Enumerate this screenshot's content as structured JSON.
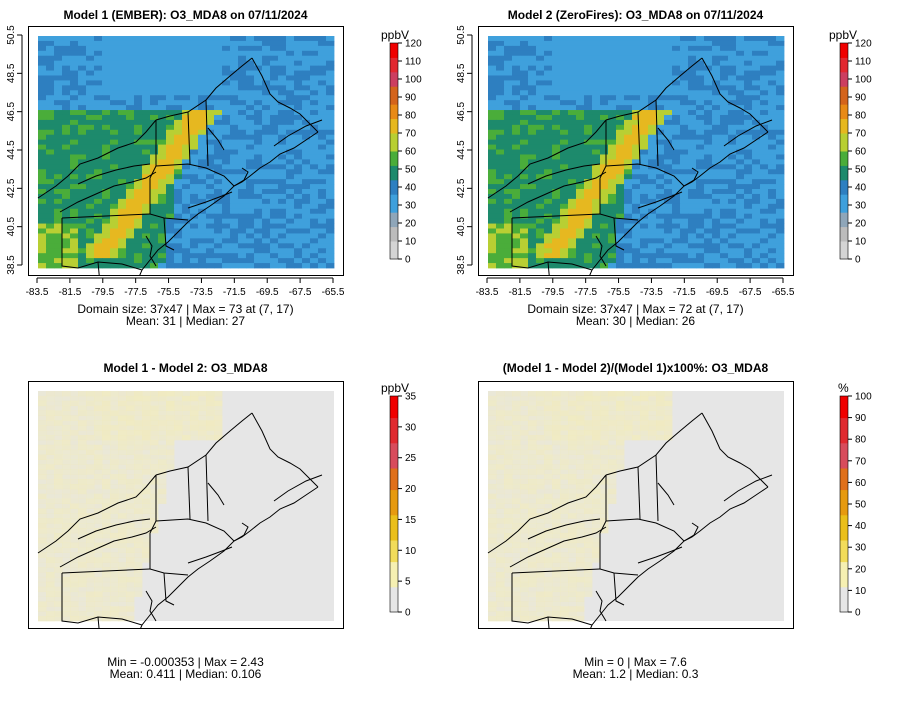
{
  "chart_data": [
    {
      "type": "heatmap",
      "title": "Model 1 (EMBER): O3_MDA8 on 07/11/2024",
      "x_ticks": [
        "-83.5",
        "-81.5",
        "-79.5",
        "-77.5",
        "-75.5",
        "-73.5",
        "-71.5",
        "-69.5",
        "-67.5",
        "-65.5"
      ],
      "y_ticks": [
        "38.5",
        "40.5",
        "42.5",
        "44.5",
        "46.5",
        "48.5",
        "50.5"
      ],
      "colorbar": {
        "unit": "ppbV",
        "ticks": [
          "0",
          "10",
          "20",
          "30",
          "40",
          "50",
          "60",
          "70",
          "80",
          "90",
          "100",
          "110",
          "120"
        ],
        "range": [
          0,
          120
        ]
      },
      "stats": {
        "line1": "Domain size: 37x47 | Max = 73 at (7, 17)",
        "line2": "Mean: 31 |  Median: 27"
      },
      "grid": {
        "cols": 37,
        "rows": 47
      },
      "max": 73,
      "mean": 31,
      "median": 27
    },
    {
      "type": "heatmap",
      "title": "Model 2 (ZeroFires): O3_MDA8 on 07/11/2024",
      "x_ticks": [
        "-83.5",
        "-81.5",
        "-79.5",
        "-77.5",
        "-75.5",
        "-73.5",
        "-71.5",
        "-69.5",
        "-67.5",
        "-65.5"
      ],
      "y_ticks": [
        "38.5",
        "40.5",
        "42.5",
        "44.5",
        "46.5",
        "48.5",
        "50.5"
      ],
      "colorbar": {
        "unit": "ppbV",
        "ticks": [
          "0",
          "10",
          "20",
          "30",
          "40",
          "50",
          "60",
          "70",
          "80",
          "90",
          "100",
          "110",
          "120"
        ],
        "range": [
          0,
          120
        ]
      },
      "stats": {
        "line1": "Domain size: 37x47 | Max = 72 at (7, 17)",
        "line2": "Mean: 30 |  Median: 26"
      },
      "grid": {
        "cols": 37,
        "rows": 47
      },
      "max": 72,
      "mean": 30,
      "median": 26
    },
    {
      "type": "heatmap",
      "title": "Model 1 - Model 2: O3_MDA8",
      "colorbar": {
        "unit": "ppbV",
        "ticks": [
          "0",
          "5",
          "10",
          "15",
          "20",
          "25",
          "30",
          "35"
        ],
        "range": [
          0,
          35
        ]
      },
      "stats": {
        "line1": "Min = -0.000353 | Max = 2.43",
        "line2": "Mean: 0.411 |  Median: 0.106"
      },
      "min": -0.000353,
      "max": 2.43,
      "mean": 0.411,
      "median": 0.106
    },
    {
      "type": "heatmap",
      "title": "(Model 1 - Model 2)/(Model 1)x100%: O3_MDA8",
      "colorbar": {
        "unit": "%",
        "ticks": [
          "0",
          "10",
          "20",
          "30",
          "40",
          "50",
          "60",
          "70",
          "80",
          "90",
          "100"
        ],
        "range": [
          0,
          100
        ]
      },
      "stats": {
        "line1": "Min = 0 | Max = 7.6",
        "line2": "Mean: 1.2 |  Median: 0.3"
      },
      "min": 0,
      "max": 7.6,
      "mean": 1.2,
      "median": 0.3
    }
  ],
  "colors": {
    "scale_abs": [
      "#d4d4d4",
      "#bcbcbc",
      "#8fa6b9",
      "#3fa0dc",
      "#2e7fc0",
      "#1d8a6c",
      "#4aad3a",
      "#b8cf33",
      "#e6b820",
      "#e88a16",
      "#d4641c",
      "#cc3e60",
      "#e22830",
      "#f00000"
    ],
    "scale_diff": [
      "#e6e6e6",
      "#f6f0b2",
      "#f2dc5a",
      "#eabf1a",
      "#e69a10",
      "#e0701a",
      "#d84c5c",
      "#e02a30",
      "#f00000"
    ],
    "ocean": "#4aa3dc",
    "diff_background": "#e6e6e6",
    "diff_tint": "#f1ebbd",
    "boundary": "#000000"
  }
}
